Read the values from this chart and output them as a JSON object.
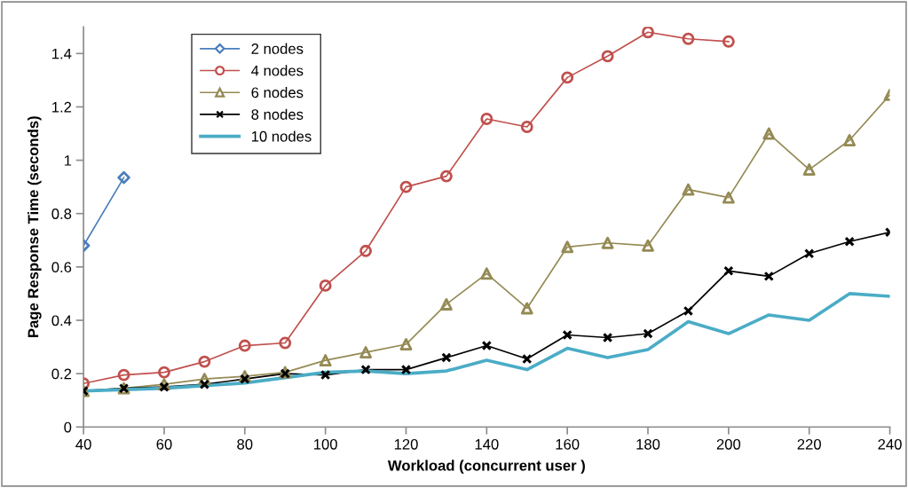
{
  "chart_data": {
    "type": "line",
    "xlabel": "Workload (concurrent user )",
    "ylabel": "Page Response Time (seconds)",
    "x": [
      40,
      50,
      60,
      70,
      80,
      90,
      100,
      110,
      120,
      130,
      140,
      150,
      160,
      170,
      180,
      190,
      200,
      210,
      220,
      230,
      240
    ],
    "xlim": [
      40,
      240
    ],
    "xticks": [
      40,
      60,
      80,
      100,
      120,
      140,
      160,
      180,
      200,
      220,
      240
    ],
    "ylim": [
      0,
      1.5
    ],
    "yticks": [
      0,
      0.2,
      0.4,
      0.6,
      0.8,
      1,
      1.2,
      1.4
    ],
    "grid": false,
    "legend": "top left",
    "series": [
      {
        "name": "2 nodes",
        "color": "#4a7ebb",
        "marker": "diamond",
        "values": [
          0.68,
          0.935,
          null,
          null,
          null,
          null,
          null,
          null,
          null,
          null,
          null,
          null,
          null,
          null,
          null,
          null,
          null,
          null,
          null,
          null,
          null
        ]
      },
      {
        "name": "4 nodes",
        "color": "#c0504d",
        "marker": "circle",
        "values": [
          0.163,
          0.195,
          0.205,
          0.245,
          0.305,
          0.315,
          0.53,
          0.66,
          0.9,
          0.94,
          1.155,
          1.125,
          1.31,
          1.39,
          1.48,
          1.455,
          1.445,
          null,
          null,
          null,
          null
        ]
      },
      {
        "name": "6 nodes",
        "color": "#948a54",
        "marker": "triangle",
        "values": [
          0.135,
          0.145,
          0.16,
          0.18,
          0.19,
          0.205,
          0.25,
          0.28,
          0.31,
          0.46,
          0.575,
          0.445,
          0.675,
          0.69,
          0.68,
          0.89,
          0.86,
          1.1,
          0.965,
          1.075,
          1.245
        ]
      },
      {
        "name": "8 nodes",
        "color": "#000000",
        "marker": "cross",
        "values": [
          0.135,
          0.145,
          0.15,
          0.16,
          0.18,
          0.2,
          0.195,
          0.215,
          0.215,
          0.26,
          0.305,
          0.255,
          0.345,
          0.335,
          0.35,
          0.435,
          0.585,
          0.565,
          0.65,
          0.695,
          0.73
        ]
      },
      {
        "name": "10 nodes",
        "color": "#4bacc6",
        "marker": "none",
        "values": [
          0.135,
          0.14,
          0.145,
          0.155,
          0.165,
          0.185,
          0.205,
          0.21,
          0.2,
          0.21,
          0.25,
          0.215,
          0.295,
          0.26,
          0.29,
          0.395,
          0.35,
          0.42,
          0.4,
          0.5,
          0.49
        ]
      }
    ]
  }
}
